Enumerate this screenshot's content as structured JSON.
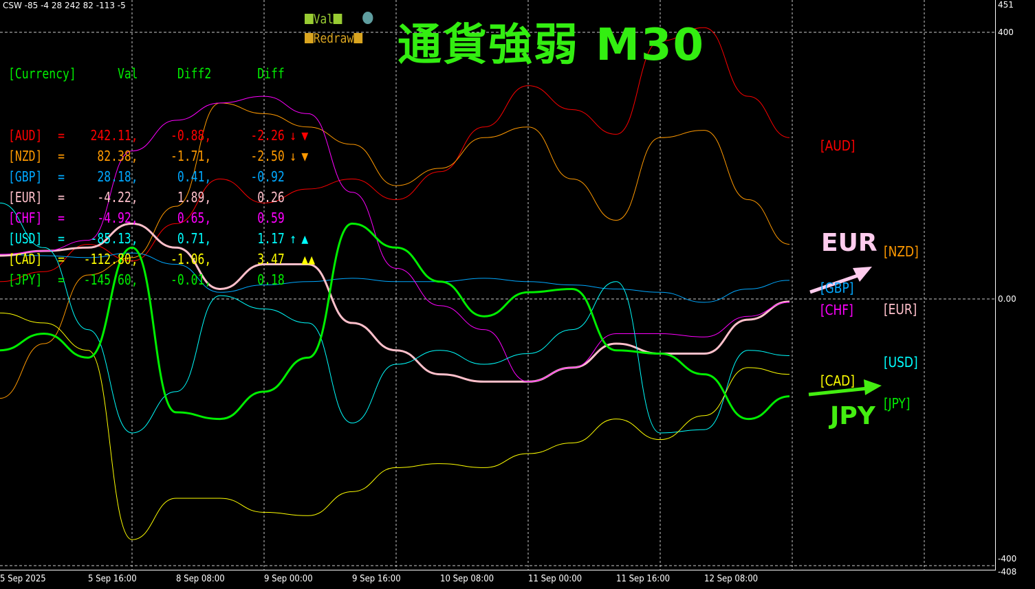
{
  "header": "CSW -85 -4 28 242 82 -113 -5",
  "table": {
    "headers": [
      "[Currency]",
      "Val",
      "Diff2",
      "Diff"
    ],
    "header_color": "#00ee00",
    "rows": [
      {
        "cur": "[AUD]",
        "eq": "=",
        "val": "242.11,",
        "diff2": "-0.88,",
        "diff": "-2.26",
        "arrow": "↓",
        "tri": "▼",
        "color": "#ff0000"
      },
      {
        "cur": "[NZD]",
        "eq": "=",
        "val": "82.38,",
        "diff2": "-1.71,",
        "diff": "-2.50",
        "arrow": "↓",
        "tri": "▼",
        "color": "#ff9900"
      },
      {
        "cur": "[GBP]",
        "eq": "=",
        "val": "28.18,",
        "diff2": "0.41,",
        "diff": "-0.92",
        "arrow": "",
        "tri": "",
        "color": "#00a8ff"
      },
      {
        "cur": "[EUR]",
        "eq": "=",
        "val": "-4.22,",
        "diff2": "1.89,",
        "diff": "0.26",
        "arrow": "",
        "tri": "",
        "color": "#ffc0cb"
      },
      {
        "cur": "[CHF]",
        "eq": "=",
        "val": "-4.92,",
        "diff2": "0.65,",
        "diff": "0.59",
        "arrow": "",
        "tri": "",
        "color": "#ff00ff"
      },
      {
        "cur": "[USD]",
        "eq": "=",
        "val": "-85.13,",
        "diff2": "0.71,",
        "diff": "1.17",
        "arrow": "↑",
        "tri": "▲",
        "color": "#00ffff"
      },
      {
        "cur": "[CAD]",
        "eq": "=",
        "val": "-112.80,",
        "diff2": "-1.06,",
        "diff": "3.47",
        "arrow": "",
        "tri": "▲▲",
        "color": "#ffff00"
      },
      {
        "cur": "[JPY]",
        "eq": "=",
        "val": "-145.60,",
        "diff2": "-0.01,",
        "diff": "0.18",
        "arrow": "",
        "tri": "",
        "color": "#00ee00"
      }
    ]
  },
  "legend": {
    "val_label": "Val",
    "redraw_label": "Redraw",
    "val_color": "#99cc33",
    "redraw_color": "#daa520",
    "dot_color": "#5f9ea0"
  },
  "title": "通貨強弱 M30",
  "strong_label": "EUR",
  "weak_label": "JPY",
  "strong_color": "#ffccee",
  "weak_color": "#44ee11",
  "chart_data": {
    "type": "line",
    "ylim": [
      -408,
      451
    ],
    "y_ticks": [
      "451",
      "400",
      "0.00",
      "-400",
      "-408"
    ],
    "x_ticks": [
      "5 Sep 2025",
      "5 Sep 16:00",
      "8 Sep 08:00",
      "9 Sep 00:00",
      "9 Sep 16:00",
      "10 Sep 08:00",
      "11 Sep 00:00",
      "11 Sep 16:00",
      "12 Sep 08:00"
    ],
    "grid": true,
    "series": [
      {
        "name": "[AUD]",
        "color": "#ff0000",
        "values": [
          26,
          41,
          82,
          57,
          113,
          180,
          144,
          165,
          180,
          149,
          191,
          258,
          320,
          284,
          247,
          387,
          407,
          304,
          242
        ]
      },
      {
        "name": "[NZD]",
        "color": "#ff9900",
        "values": [
          -149,
          -67,
          36,
          62,
          139,
          294,
          278,
          258,
          232,
          170,
          196,
          242,
          258,
          180,
          118,
          242,
          253,
          149,
          82
        ]
      },
      {
        "name": "[GBP]",
        "color": "#00a8ff",
        "values": [
          67,
          65,
          62,
          69,
          52,
          10,
          21,
          26,
          31,
          26,
          26,
          31,
          26,
          21,
          15,
          10,
          -5,
          15,
          28
        ]
      },
      {
        "name": "[EUR]",
        "color": "#ffc0cb",
        "values": [
          65,
          72,
          77,
          113,
          77,
          15,
          52,
          52,
          -36,
          -77,
          -113,
          -124,
          -124,
          -103,
          -67,
          -82,
          -82,
          -31,
          -4
        ]
      },
      {
        "name": "[CHF]",
        "color": "#ff00ff",
        "values": [
          67,
          72,
          88,
          222,
          268,
          294,
          304,
          278,
          160,
          46,
          -10,
          -46,
          -124,
          -103,
          -52,
          -52,
          -57,
          -26,
          -5
        ]
      },
      {
        "name": "[USD]",
        "color": "#00ffff",
        "values": [
          144,
          77,
          -46,
          -201,
          -139,
          5,
          -15,
          -36,
          -186,
          -98,
          -77,
          -98,
          -82,
          -46,
          26,
          -201,
          -196,
          -77,
          -85
        ]
      },
      {
        "name": "[CAD]",
        "color": "#ffff00",
        "values": [
          -21,
          -36,
          -77,
          -361,
          -299,
          -299,
          -320,
          -325,
          -289,
          -253,
          -247,
          -253,
          -232,
          -216,
          -180,
          -211,
          -175,
          -103,
          -113
        ]
      },
      {
        "name": "[JPY]",
        "color": "#00ee00",
        "values": [
          -77,
          -52,
          -88,
          77,
          -170,
          -180,
          -139,
          -88,
          113,
          77,
          26,
          -26,
          10,
          15,
          -77,
          -82,
          -113,
          -180,
          -146
        ]
      }
    ]
  }
}
